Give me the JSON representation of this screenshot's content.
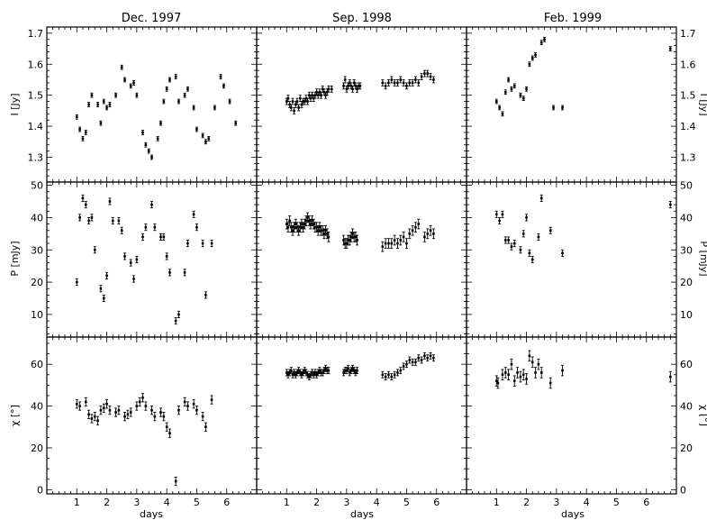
{
  "panel_titles": [
    "Dec. 1997",
    "Sep. 1998",
    "Feb. 1999"
  ],
  "ylabels": [
    "I [Jy]",
    "P [mJy]",
    "χ [°]"
  ],
  "xlabel": "days",
  "chart_data": {
    "type": "scatter",
    "layout": "3x3 grid (rows: I, P, χ; columns: observing epochs)",
    "xlim": [
      0,
      7
    ],
    "x_ticks": [
      1,
      2,
      3,
      4,
      5,
      6
    ],
    "rows": [
      {
        "name": "I",
        "ylabel": "I [Jy]",
        "ylim": [
          1.22,
          1.72
        ],
        "ticks": [
          1.3,
          1.4,
          1.5,
          1.6,
          1.7
        ],
        "tick_labels": [
          "1.3",
          "1.4",
          "1.5",
          "1.6",
          "1.7"
        ],
        "minor_step": 0.02
      },
      {
        "name": "P",
        "ylabel": "P [mJy]",
        "ylim": [
          3,
          51
        ],
        "ticks": [
          10,
          20,
          30,
          40,
          50
        ],
        "tick_labels": [
          "10",
          "20",
          "30",
          "40",
          "50"
        ],
        "minor_step": 2
      },
      {
        "name": "chi",
        "ylabel": "χ [°]",
        "ylim": [
          -2,
          73
        ],
        "ticks": [
          0,
          20,
          40,
          60
        ],
        "tick_labels": [
          "0",
          "20",
          "40",
          "60"
        ],
        "minor_step": 5
      }
    ],
    "columns": [
      {
        "title": "Dec. 1997",
        "show_xlabel": true,
        "I": {
          "x": [
            1.0,
            1.1,
            1.2,
            1.3,
            1.4,
            1.5,
            1.7,
            1.8,
            1.9,
            2.0,
            2.1,
            2.3,
            2.5,
            2.6,
            2.8,
            2.9,
            3.0,
            3.2,
            3.3,
            3.4,
            3.5,
            3.7,
            3.8,
            3.9,
            4.0,
            4.1,
            4.3,
            4.4,
            4.6,
            4.7,
            4.9,
            5.0,
            5.2,
            5.3,
            5.4,
            5.6,
            5.8,
            5.9,
            6.1,
            6.3
          ],
          "y": [
            1.43,
            1.39,
            1.36,
            1.38,
            1.47,
            1.5,
            1.47,
            1.41,
            1.48,
            1.46,
            1.47,
            1.5,
            1.59,
            1.55,
            1.53,
            1.54,
            1.5,
            1.38,
            1.34,
            1.32,
            1.3,
            1.36,
            1.41,
            1.48,
            1.52,
            1.55,
            1.56,
            1.48,
            1.5,
            1.52,
            1.46,
            1.39,
            1.37,
            1.35,
            1.36,
            1.46,
            1.56,
            1.53,
            1.48,
            1.41
          ],
          "err": 0.007
        },
        "P": {
          "x": [
            1.0,
            1.1,
            1.2,
            1.3,
            1.4,
            1.5,
            1.6,
            1.8,
            1.9,
            2.0,
            2.1,
            2.2,
            2.4,
            2.5,
            2.6,
            2.8,
            2.9,
            3.0,
            3.2,
            3.3,
            3.5,
            3.6,
            3.8,
            3.9,
            4.0,
            4.1,
            4.3,
            4.4,
            4.6,
            4.7,
            4.9,
            5.0,
            5.2,
            5.3,
            5.5
          ],
          "y": [
            20,
            40,
            46,
            44,
            39,
            40,
            30,
            18,
            15,
            22,
            45,
            39,
            39,
            36,
            28,
            26,
            21,
            27,
            34,
            37,
            44,
            37,
            34,
            34,
            28,
            23,
            8,
            10,
            23,
            32,
            41,
            37,
            32,
            16,
            32
          ],
          "err": 1.0
        },
        "chi": {
          "x": [
            1.0,
            1.1,
            1.3,
            1.4,
            1.5,
            1.6,
            1.7,
            1.8,
            1.9,
            2.0,
            2.1,
            2.3,
            2.4,
            2.6,
            2.7,
            2.8,
            3.0,
            3.1,
            3.2,
            3.3,
            3.5,
            3.6,
            3.8,
            3.9,
            4.0,
            4.1,
            4.3,
            4.4,
            4.6,
            4.7,
            4.9,
            5.0,
            5.2,
            5.3,
            5.5
          ],
          "y": [
            41,
            40,
            42,
            36,
            34,
            35,
            33,
            38,
            39,
            41,
            38,
            37,
            38,
            35,
            36,
            37,
            40,
            42,
            44,
            40,
            38,
            35,
            37,
            35,
            30,
            27,
            4,
            38,
            42,
            40,
            41,
            38,
            35,
            30,
            43
          ],
          "err": 2.0
        }
      },
      {
        "title": "Sep. 1998",
        "show_xlabel": true,
        "I": {
          "x": [
            1.0,
            1.05,
            1.1,
            1.15,
            1.2,
            1.25,
            1.3,
            1.35,
            1.4,
            1.45,
            1.5,
            1.55,
            1.6,
            1.65,
            1.7,
            1.75,
            1.8,
            1.85,
            1.9,
            1.95,
            2.0,
            2.05,
            2.1,
            2.15,
            2.2,
            2.25,
            2.3,
            2.35,
            2.4,
            2.5,
            2.9,
            2.95,
            3.0,
            3.05,
            3.1,
            3.15,
            3.2,
            3.25,
            3.3,
            3.35,
            3.4,
            3.45,
            4.2,
            4.3,
            4.4,
            4.5,
            4.6,
            4.7,
            4.8,
            4.9,
            5.0,
            5.1,
            5.2,
            5.3,
            5.4,
            5.5,
            5.6,
            5.7,
            5.8,
            5.9
          ],
          "y": [
            1.48,
            1.49,
            1.47,
            1.46,
            1.48,
            1.45,
            1.47,
            1.48,
            1.46,
            1.49,
            1.47,
            1.48,
            1.48,
            1.49,
            1.48,
            1.5,
            1.49,
            1.5,
            1.49,
            1.5,
            1.51,
            1.5,
            1.51,
            1.5,
            1.52,
            1.51,
            1.5,
            1.51,
            1.52,
            1.52,
            1.53,
            1.55,
            1.52,
            1.53,
            1.54,
            1.53,
            1.52,
            1.54,
            1.53,
            1.52,
            1.53,
            1.53,
            1.54,
            1.53,
            1.54,
            1.55,
            1.54,
            1.54,
            1.55,
            1.54,
            1.53,
            1.54,
            1.54,
            1.55,
            1.54,
            1.56,
            1.57,
            1.57,
            1.56,
            1.55
          ],
          "err": 0.01
        },
        "P": {
          "x": [
            1.0,
            1.05,
            1.1,
            1.15,
            1.2,
            1.25,
            1.3,
            1.35,
            1.4,
            1.45,
            1.5,
            1.55,
            1.6,
            1.65,
            1.7,
            1.75,
            1.8,
            1.85,
            1.9,
            1.95,
            2.0,
            2.05,
            2.1,
            2.15,
            2.2,
            2.25,
            2.3,
            2.35,
            2.4,
            2.9,
            2.95,
            3.0,
            3.05,
            3.1,
            3.15,
            3.2,
            3.25,
            3.3,
            3.35,
            4.2,
            4.3,
            4.4,
            4.5,
            4.6,
            4.7,
            4.8,
            4.9,
            5.0,
            5.1,
            5.2,
            5.3,
            5.4,
            5.6,
            5.7,
            5.8,
            5.9
          ],
          "y": [
            38,
            37,
            39,
            37,
            36,
            37,
            38,
            37,
            36,
            37,
            38,
            37,
            38,
            39,
            40,
            39,
            38,
            39,
            38,
            37,
            37,
            36,
            37,
            36,
            36,
            35,
            36,
            35,
            34,
            33,
            32,
            32,
            33,
            33,
            34,
            35,
            34,
            34,
            33,
            31,
            32,
            32,
            32,
            33,
            32,
            33,
            34,
            32,
            35,
            36,
            37,
            38,
            34,
            35,
            36,
            35
          ],
          "err": 1.5
        },
        "chi": {
          "x": [
            1.0,
            1.05,
            1.1,
            1.15,
            1.2,
            1.25,
            1.3,
            1.35,
            1.4,
            1.45,
            1.5,
            1.55,
            1.6,
            1.65,
            1.7,
            1.75,
            1.8,
            1.85,
            1.9,
            1.95,
            2.0,
            2.05,
            2.1,
            2.15,
            2.2,
            2.25,
            2.3,
            2.35,
            2.4,
            2.9,
            2.95,
            3.0,
            3.05,
            3.1,
            3.15,
            3.2,
            3.25,
            3.3,
            3.35,
            4.2,
            4.3,
            4.4,
            4.5,
            4.6,
            4.7,
            4.8,
            4.9,
            5.0,
            5.1,
            5.2,
            5.3,
            5.4,
            5.5,
            5.6,
            5.7,
            5.8,
            5.9
          ],
          "y": [
            56,
            55,
            56,
            57,
            55,
            56,
            55,
            56,
            57,
            56,
            55,
            56,
            57,
            56,
            55,
            54,
            55,
            56,
            55,
            56,
            55,
            56,
            57,
            56,
            56,
            57,
            58,
            57,
            57,
            56,
            57,
            57,
            58,
            56,
            57,
            58,
            57,
            56,
            57,
            55,
            54,
            55,
            54,
            55,
            56,
            57,
            59,
            60,
            62,
            61,
            61,
            63,
            62,
            64,
            63,
            64,
            63
          ],
          "err": 1.5
        }
      },
      {
        "title": "Feb. 1999",
        "show_xlabel": true,
        "I": {
          "x": [
            1.0,
            1.1,
            1.2,
            1.3,
            1.4,
            1.5,
            1.6,
            1.8,
            1.9,
            2.0,
            2.1,
            2.2,
            2.3,
            2.5,
            2.6,
            2.9,
            3.2,
            6.8
          ],
          "y": [
            1.48,
            1.46,
            1.44,
            1.51,
            1.55,
            1.52,
            1.53,
            1.5,
            1.49,
            1.52,
            1.6,
            1.62,
            1.63,
            1.67,
            1.68,
            1.46,
            1.46,
            1.65
          ],
          "err": 0.007
        },
        "P": {
          "x": [
            1.0,
            1.1,
            1.2,
            1.3,
            1.4,
            1.5,
            1.6,
            1.8,
            1.9,
            2.0,
            2.1,
            2.2,
            2.4,
            2.5,
            2.8,
            3.2,
            6.8
          ],
          "y": [
            41,
            39,
            41,
            33,
            33,
            31,
            32,
            30,
            35,
            40,
            29,
            27,
            34,
            46,
            36,
            29,
            44
          ],
          "err": 1.0
        },
        "chi": {
          "x": [
            1.0,
            1.05,
            1.2,
            1.3,
            1.4,
            1.5,
            1.6,
            1.7,
            1.8,
            1.9,
            2.0,
            2.1,
            2.2,
            2.3,
            2.4,
            2.5,
            2.8,
            3.2,
            6.8
          ],
          "y": [
            52,
            51,
            55,
            56,
            55,
            60,
            52,
            56,
            54,
            55,
            53,
            64,
            61,
            56,
            60,
            56,
            51,
            57,
            54
          ],
          "err": 2.5
        }
      }
    ]
  }
}
